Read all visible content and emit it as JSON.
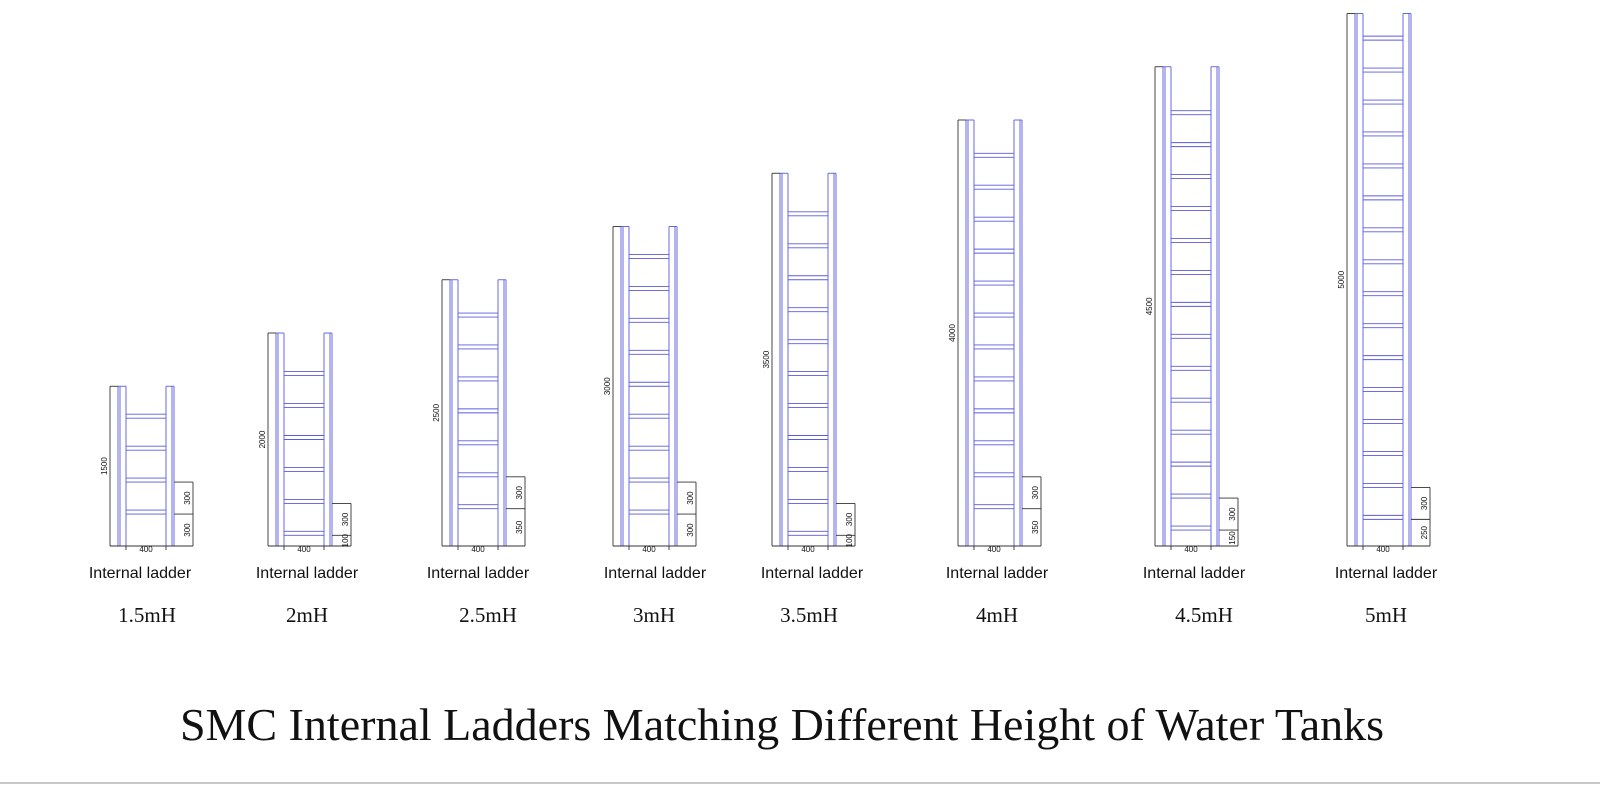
{
  "title": "SMC Internal Ladders Matching Different Height of Water Tanks",
  "colors": {
    "ladder": "#5a5ae0",
    "dimension": "#333333"
  },
  "ladders": [
    {
      "caption": "Internal ladder",
      "height_label": "1.5mH",
      "total": "1500",
      "width": "400",
      "pitch": "300",
      "offset": "300"
    },
    {
      "caption": "Internal ladder",
      "height_label": "2mH",
      "total": "2000",
      "width": "400",
      "pitch": "300",
      "offset": "100"
    },
    {
      "caption": "Internal ladder",
      "height_label": "2.5mH",
      "total": "2500",
      "width": "400",
      "pitch": "300",
      "offset": "350"
    },
    {
      "caption": "Internal ladder",
      "height_label": "3mH",
      "total": "3000",
      "width": "400",
      "pitch": "300",
      "offset": "300"
    },
    {
      "caption": "Internal ladder",
      "height_label": "3.5mH",
      "total": "3500",
      "width": "400",
      "pitch": "300",
      "offset": "100"
    },
    {
      "caption": "Internal ladder",
      "height_label": "4mH",
      "total": "4000",
      "width": "400",
      "pitch": "300",
      "offset": "350"
    },
    {
      "caption": "Internal ladder",
      "height_label": "4.5mH",
      "total": "4500",
      "width": "400",
      "pitch": "300",
      "offset": "150"
    },
    {
      "caption": "Internal ladder",
      "height_label": "5mH",
      "total": "5000",
      "width": "400",
      "pitch": "300",
      "offset": "250"
    }
  ]
}
